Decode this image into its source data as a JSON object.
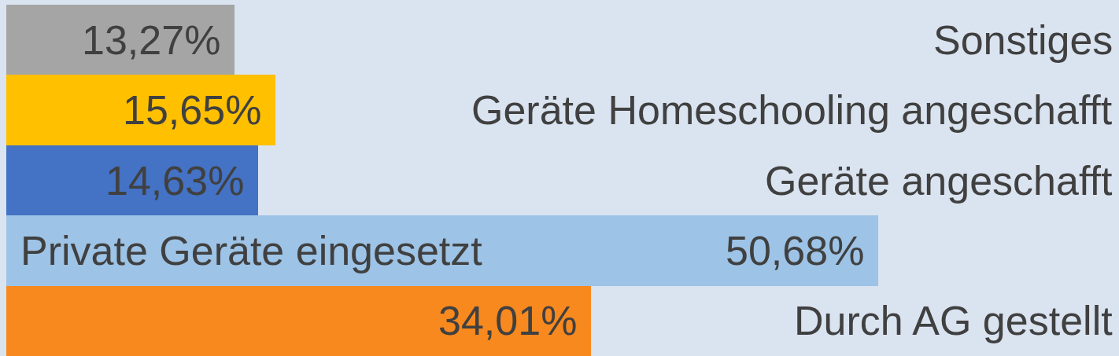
{
  "chart_data": {
    "type": "bar",
    "orientation": "horizontal",
    "categories": [
      "Sonstiges",
      "Geräte Homeschooling angeschafft",
      "Geräte angeschafft",
      "Private Geräte eingesetzt",
      "Durch AG gestellt"
    ],
    "values": [
      13.27,
      15.65,
      14.63,
      50.68,
      34.01
    ],
    "colors": [
      "#a5a5a5",
      "#ffc000",
      "#4472c4",
      "#9dc3e6",
      "#f7891e"
    ],
    "value_labels": [
      "13,27%",
      "15,65%",
      "14,63%",
      "50,68%",
      "34,01%"
    ],
    "xlim": [
      0,
      64.7
    ],
    "tick_labels": "y"
  }
}
